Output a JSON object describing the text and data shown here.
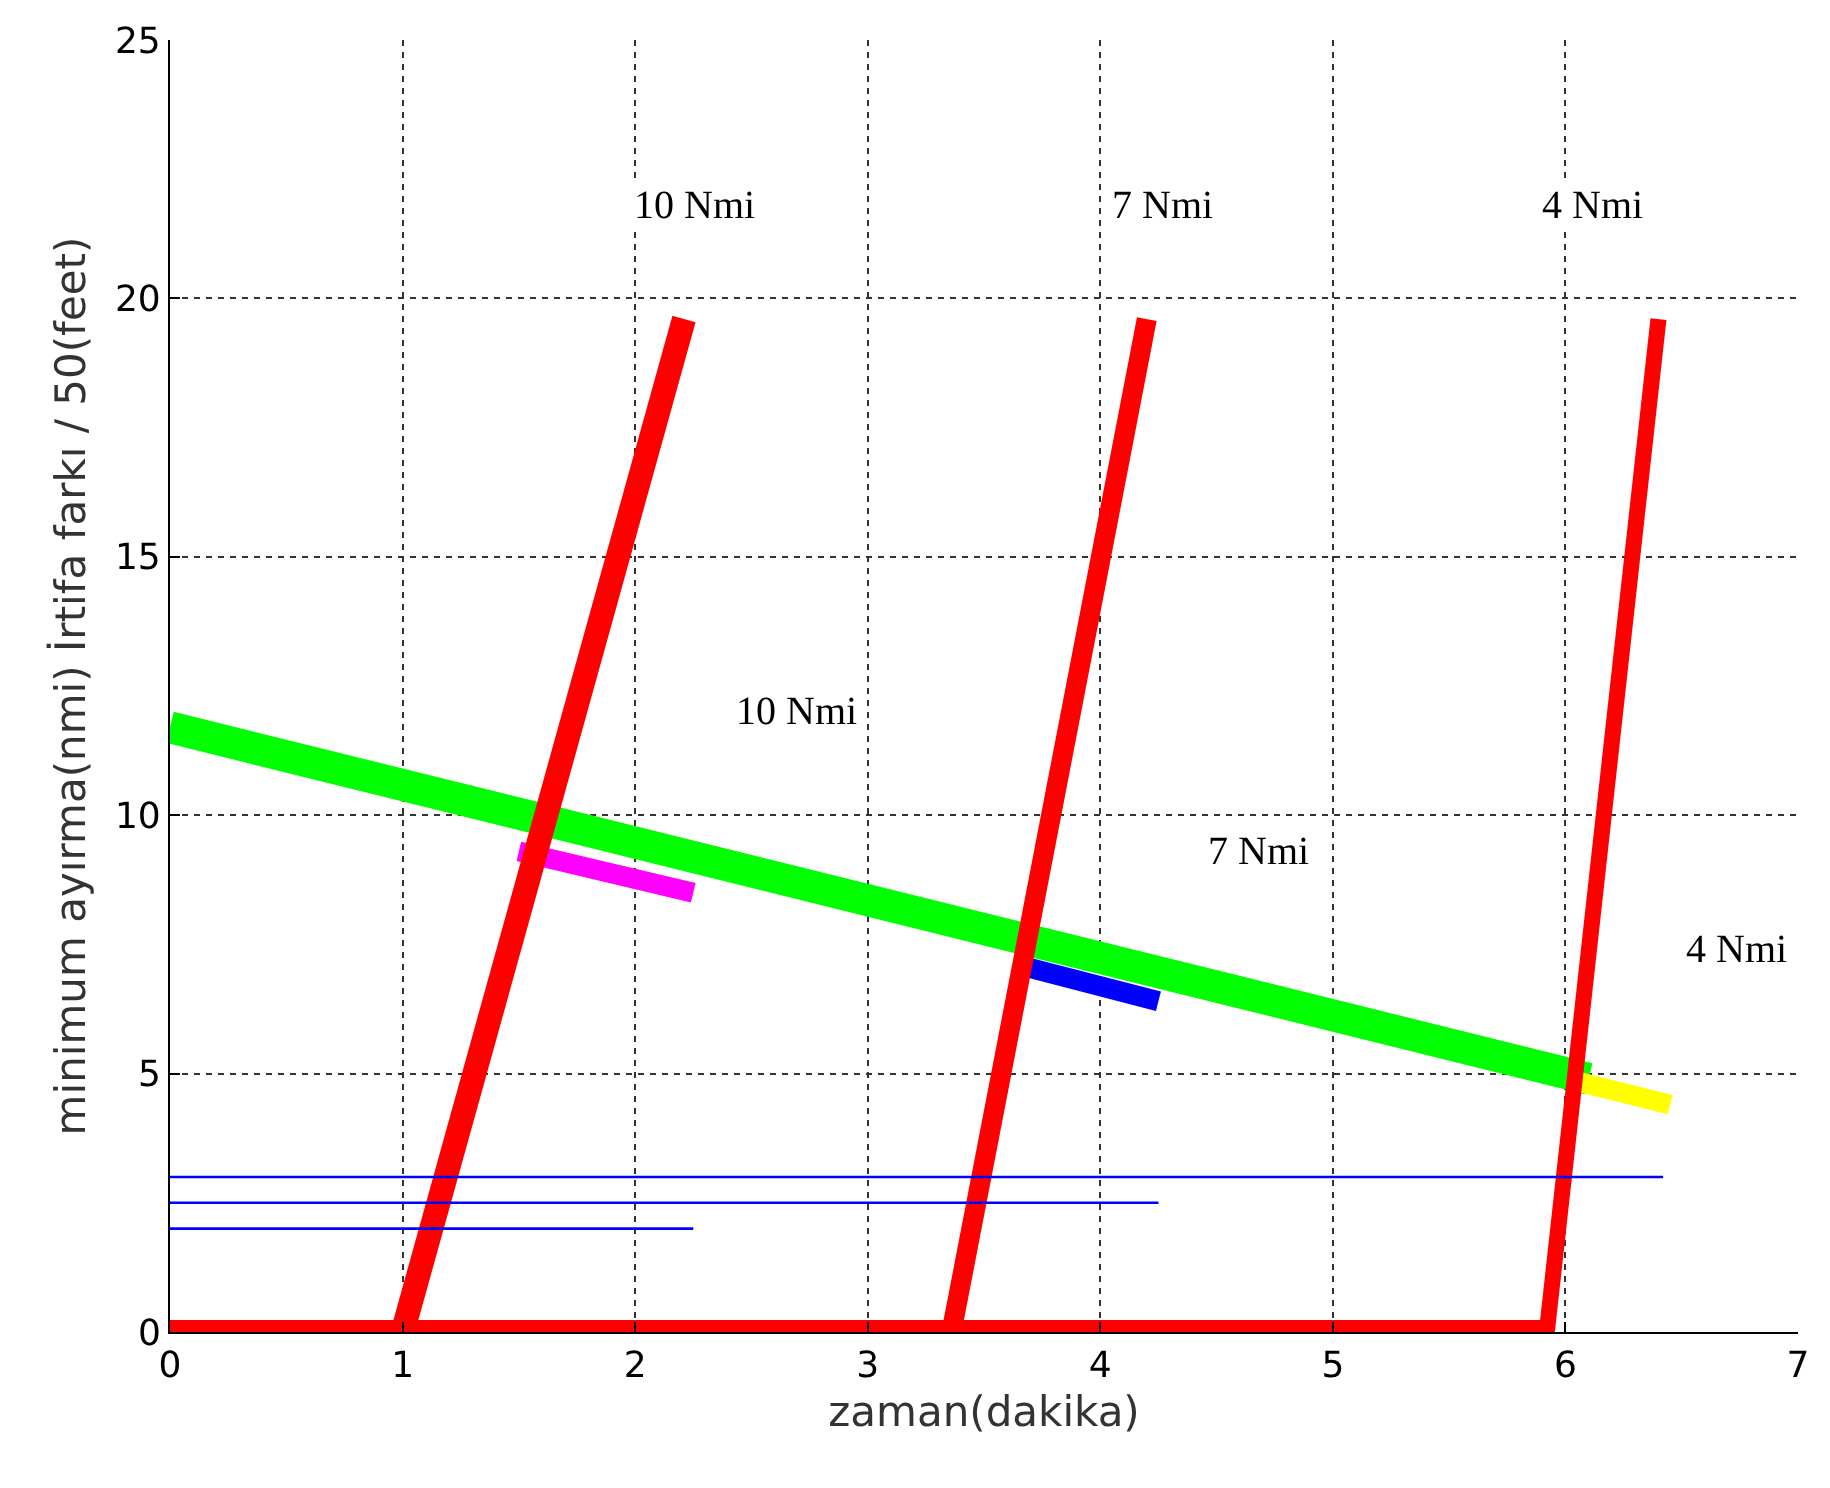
{
  "chart_data": {
    "type": "line",
    "xlabel": "zaman(dakika)",
    "ylabel": "minimum ayırma(nmi) İrtifa farkı / 50(feet)",
    "xlim": [
      0,
      7
    ],
    "ylim": [
      0,
      25
    ],
    "xticks": [
      0,
      1,
      2,
      3,
      4,
      5,
      6,
      7
    ],
    "yticks": [
      0,
      5,
      10,
      15,
      20,
      25
    ],
    "grid": true,
    "marker": "none",
    "line_style": "solid",
    "series": [
      {
        "color": "#00ff00",
        "x": [
          0,
          6.1
        ],
        "values": [
          11.7,
          4.9
        ]
      },
      {
        "color": "#ff00ff",
        "x": [
          1.5,
          2.25
        ],
        "values": [
          9.3,
          8.5
        ]
      },
      {
        "color": "#0000ff",
        "x": [
          3.65,
          4.25
        ],
        "values": [
          7.1,
          6.4
        ]
      },
      {
        "color": "#ffff00",
        "x": [
          6.05,
          6.45
        ],
        "values": [
          4.85,
          4.4
        ]
      },
      {
        "color": "#ff0000",
        "x": [
          1.0,
          2.21
        ],
        "values": [
          0,
          19.6
        ]
      },
      {
        "color": "#ff0000",
        "x": [
          3.36,
          4.2
        ],
        "values": [
          0,
          19.6
        ]
      },
      {
        "color": "#ff0000",
        "x": [
          5.92,
          6.4
        ],
        "values": [
          0,
          19.6
        ]
      },
      {
        "color": "#ff0000",
        "x": [
          0,
          5.95
        ],
        "values": [
          0,
          0
        ]
      },
      {
        "color": "#0000ff",
        "x": [
          0,
          6.42
        ],
        "values": [
          3,
          3
        ]
      },
      {
        "color": "#0000ff",
        "x": [
          0,
          4.25
        ],
        "values": [
          2.5,
          2.5
        ]
      },
      {
        "color": "#0000ff",
        "x": [
          0,
          2.25
        ],
        "values": [
          2,
          2
        ]
      }
    ],
    "annotations": [
      "10 Nmi",
      "7 Nmi",
      "4 Nmi",
      "10 Nmi",
      "7 Nmi",
      "4 Nmi"
    ]
  }
}
